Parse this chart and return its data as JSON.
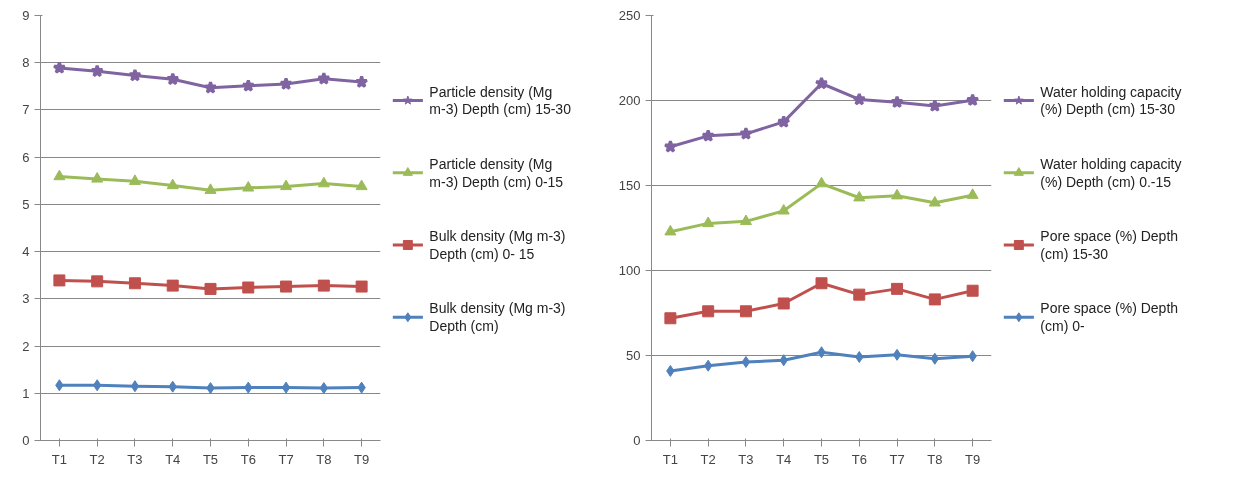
{
  "chart_data": [
    {
      "type": "line",
      "categories": [
        "T1",
        "T2",
        "T3",
        "T4",
        "T5",
        "T6",
        "T7",
        "T8",
        "T9"
      ],
      "ylim": [
        0,
        9
      ],
      "yticks": [
        0,
        1,
        2,
        3,
        4,
        5,
        6,
        7,
        8,
        9
      ],
      "grid": "y",
      "legend": "right",
      "series": [
        {
          "name": "Particle density (Mg m-3) Depth (cm) 15-30",
          "color": "#8064a2",
          "marker": "star",
          "values": [
            7.89,
            7.82,
            7.73,
            7.65,
            7.47,
            7.51,
            7.55,
            7.66,
            7.59
          ]
        },
        {
          "name": "Particle density (Mg m-3) Depth (cm) 0-15",
          "color": "#9bbb59",
          "marker": "triangle",
          "values": [
            5.59,
            5.54,
            5.49,
            5.4,
            5.3,
            5.35,
            5.38,
            5.44,
            5.38
          ]
        },
        {
          "name": "Bulk density (Mg m-3) Depth (cm) 0- 15",
          "color": "#c0504d",
          "marker": "square",
          "values": [
            3.39,
            3.37,
            3.33,
            3.28,
            3.21,
            3.24,
            3.26,
            3.28,
            3.26
          ]
        },
        {
          "name": "Bulk density (Mg m-3) Depth (cm)",
          "color": "#4f81bd",
          "marker": "diamond",
          "values": [
            1.17,
            1.17,
            1.15,
            1.14,
            1.11,
            1.12,
            1.12,
            1.11,
            1.12
          ]
        }
      ]
    },
    {
      "type": "line",
      "categories": [
        "T1",
        "T2",
        "T3",
        "T4",
        "T5",
        "T6",
        "T7",
        "T8",
        "T9"
      ],
      "ylim": [
        0,
        250
      ],
      "yticks": [
        0,
        50,
        100,
        150,
        200,
        250
      ],
      "grid": "y",
      "legend": "right",
      "series": [
        {
          "name": "Water holding capacity (%) Depth (cm) 15-30",
          "color": "#8064a2",
          "marker": "star",
          "values": [
            172.8,
            179.2,
            180.4,
            187.4,
            210,
            200.6,
            199,
            196.8,
            200.2
          ]
        },
        {
          "name": "Water holding capacity (%) Depth (cm) 0.-15",
          "color": "#9bbb59",
          "marker": "triangle",
          "values": [
            122.8,
            127.7,
            128.9,
            135.1,
            151.1,
            142.8,
            144,
            139.8,
            144.3
          ]
        },
        {
          "name": "Pore space (%) Depth (cm) 15-30",
          "color": "#c0504d",
          "marker": "square",
          "values": [
            71.9,
            76,
            76,
            80.6,
            92.5,
            85.8,
            89.2,
            83,
            88.1
          ]
        },
        {
          "name": "Pore space (%) Depth (cm) 0-",
          "color": "#4f81bd",
          "marker": "diamond",
          "values": [
            40.9,
            44,
            46.2,
            47.2,
            51.9,
            49.1,
            50.4,
            48.1,
            49.6
          ]
        }
      ]
    }
  ]
}
